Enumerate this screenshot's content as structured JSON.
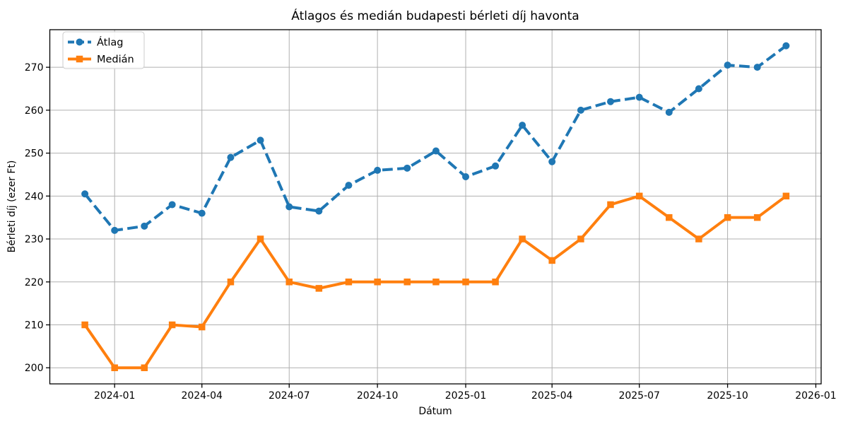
{
  "chart_data": {
    "type": "line",
    "title": "Átlagos és medián budapesti bérleti díj havonta",
    "xlabel": "Dátum",
    "ylabel": "Bérleti díj (ezer Ft)",
    "x": [
      "2023-12",
      "2024-01",
      "2024-02",
      "2024-03",
      "2024-04",
      "2024-05",
      "2024-06",
      "2024-07",
      "2024-08",
      "2024-09",
      "2024-10",
      "2024-11",
      "2024-12",
      "2025-01",
      "2025-02",
      "2025-03",
      "2025-04",
      "2025-05",
      "2025-06",
      "2025-07",
      "2025-08",
      "2025-09",
      "2025-10",
      "2025-11",
      "2025-12"
    ],
    "series": [
      {
        "name": "Átlag",
        "color": "#1f77b4",
        "line_style": "dashed",
        "marker": "circle",
        "values": [
          240.5,
          232,
          233,
          238,
          236,
          249,
          253,
          237.5,
          236.5,
          242.5,
          246,
          246.5,
          250.5,
          244.5,
          247,
          256.5,
          248,
          260,
          262,
          263,
          259.5,
          265,
          270.5,
          270,
          275
        ]
      },
      {
        "name": "Medián",
        "color": "#ff7f0e",
        "line_style": "solid",
        "marker": "square",
        "values": [
          210,
          200,
          200,
          210,
          209.5,
          220,
          230,
          220,
          218.5,
          220,
          220,
          220,
          220,
          220,
          220,
          230,
          225,
          230,
          238,
          240,
          235,
          230,
          235,
          235,
          240
        ]
      }
    ],
    "x_ticks": [
      "2024-01",
      "2024-04",
      "2024-07",
      "2024-10",
      "2025-01",
      "2025-04",
      "2025-07",
      "2025-10",
      "2026-01"
    ],
    "y_ticks": [
      200,
      210,
      220,
      230,
      240,
      250,
      260,
      270
    ],
    "ylim": [
      196.25,
      278.75
    ],
    "x_margin_frac": 0.05,
    "grid": true,
    "legend_position": "upper left",
    "grid_color": "#b0b0b0",
    "spine_color": "#000000"
  }
}
